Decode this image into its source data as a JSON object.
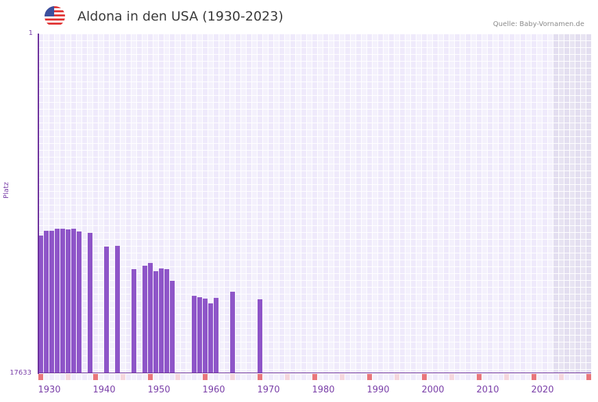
{
  "header": {
    "title": "Aldona in den USA (1930-2023)",
    "source": "Quelle: Baby-Vornamen.de",
    "flag_icon": "us-flag-icon"
  },
  "colors": {
    "bar": "#8e55c8",
    "axis": "#6b2f9a",
    "label": "#7a3fa8",
    "grid_a": "#efeafb",
    "grid_b": "#f4f1fc",
    "future_a": "#e3def0",
    "future_b": "#e8e4f2",
    "marker_decade": "#e8767c",
    "marker_half": "#f5d6dd"
  },
  "chart_data": {
    "type": "bar",
    "title": "Aldona in den USA (1930-2023)",
    "xlabel": "",
    "ylabel": "Platz",
    "ylim": [
      17633,
      1
    ],
    "y_inverted": true,
    "y_ticks": [
      "1",
      "17633"
    ],
    "x_ticks": [
      "1930",
      "1940",
      "1950",
      "1960",
      "1970",
      "1980",
      "1990",
      "2000",
      "2010",
      "2020"
    ],
    "x_range": [
      1928,
      2028
    ],
    "grid": true,
    "shaded_future_from": 2022,
    "source": "Quelle: Baby-Vornamen.de",
    "categories": [
      1928,
      1929,
      1930,
      1931,
      1932,
      1933,
      1934,
      1935,
      1937,
      1940,
      1942,
      1945,
      1947,
      1948,
      1949,
      1950,
      1951,
      1952,
      1956,
      1957,
      1958,
      1959,
      1960,
      1963,
      1968
    ],
    "values": [
      10488,
      10240,
      10240,
      10133,
      10133,
      10169,
      10133,
      10275,
      10346,
      11057,
      11021,
      12230,
      12052,
      11910,
      12336,
      12194,
      12230,
      12834,
      13616,
      13687,
      13758,
      14007,
      13723,
      13403,
      13794
    ]
  }
}
